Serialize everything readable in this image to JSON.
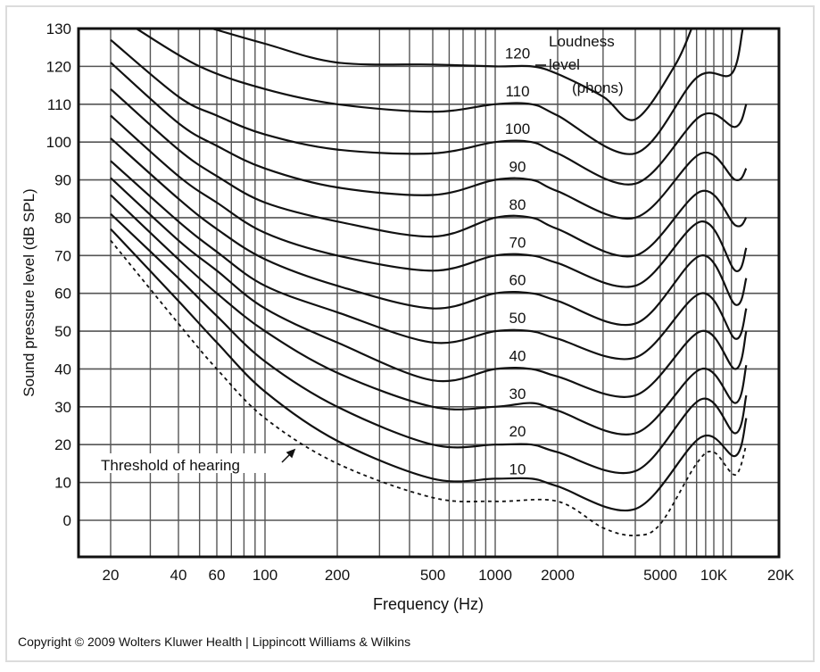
{
  "chart_data": {
    "type": "line",
    "title": "",
    "xlabel": "Frequency (Hz)",
    "ylabel": "Sound pressure level (dB SPL)",
    "x_scale": "log",
    "xlim": [
      20,
      20000
    ],
    "ylim": [
      -10,
      130
    ],
    "grid": true,
    "x_ticks": [
      {
        "value": 20,
        "label": "20"
      },
      {
        "value": 40,
        "label": "40"
      },
      {
        "value": 60,
        "label": "60"
      },
      {
        "value": 100,
        "label": "100"
      },
      {
        "value": 200,
        "label": "200"
      },
      {
        "value": 500,
        "label": "500"
      },
      {
        "value": 1000,
        "label": "1000"
      },
      {
        "value": 2000,
        "label": "2000"
      },
      {
        "value": 5000,
        "label": "5000"
      },
      {
        "value": 10000,
        "label": "10K"
      },
      {
        "value": 20000,
        "label": "20K"
      }
    ],
    "y_ticks": [
      130,
      120,
      110,
      100,
      90,
      80,
      70,
      60,
      50,
      40,
      30,
      20,
      10,
      0
    ],
    "legend_title": [
      "Loudness",
      "level",
      "(phons)"
    ],
    "series": [
      {
        "name": "120",
        "points": [
          [
            57,
            130
          ],
          [
            100,
            126
          ],
          [
            200,
            121
          ],
          [
            500,
            120.5
          ],
          [
            1000,
            120
          ],
          [
            1500,
            120
          ],
          [
            2000,
            118
          ],
          [
            3000,
            112
          ],
          [
            4000,
            106
          ],
          [
            6000,
            120
          ],
          [
            7500,
            130
          ]
        ]
      },
      {
        "name": "110",
        "points": [
          [
            26,
            130
          ],
          [
            50,
            120
          ],
          [
            100,
            114
          ],
          [
            200,
            110
          ],
          [
            500,
            108
          ],
          [
            1000,
            110
          ],
          [
            1500,
            110
          ],
          [
            2000,
            107
          ],
          [
            4000,
            97
          ],
          [
            8000,
            117
          ],
          [
            12000,
            118
          ],
          [
            13500,
            130
          ]
        ]
      },
      {
        "name": "100",
        "points": [
          [
            20,
            127
          ],
          [
            40,
            112
          ],
          [
            60,
            107
          ],
          [
            100,
            102
          ],
          [
            200,
            98
          ],
          [
            500,
            97
          ],
          [
            1000,
            100
          ],
          [
            1500,
            100
          ],
          [
            2000,
            97
          ],
          [
            4000,
            89
          ],
          [
            8500,
            107
          ],
          [
            12500,
            104
          ],
          [
            14000,
            110
          ]
        ]
      },
      {
        "name": "90",
        "points": [
          [
            20,
            121
          ],
          [
            40,
            105
          ],
          [
            60,
            99
          ],
          [
            100,
            93
          ],
          [
            200,
            88
          ],
          [
            500,
            86
          ],
          [
            1000,
            90
          ],
          [
            1500,
            90
          ],
          [
            2000,
            87
          ],
          [
            4000,
            80
          ],
          [
            8500,
            97
          ],
          [
            12500,
            90
          ],
          [
            14000,
            93
          ]
        ]
      },
      {
        "name": "80",
        "points": [
          [
            20,
            114
          ],
          [
            40,
            98
          ],
          [
            60,
            91
          ],
          [
            100,
            84
          ],
          [
            200,
            79
          ],
          [
            500,
            75
          ],
          [
            1000,
            80
          ],
          [
            1500,
            80
          ],
          [
            2000,
            77
          ],
          [
            4000,
            70
          ],
          [
            8500,
            87
          ],
          [
            12500,
            78
          ],
          [
            14000,
            80
          ]
        ]
      },
      {
        "name": "70",
        "points": [
          [
            20,
            107
          ],
          [
            40,
            91
          ],
          [
            60,
            84
          ],
          [
            100,
            76
          ],
          [
            200,
            70
          ],
          [
            500,
            66
          ],
          [
            1000,
            70
          ],
          [
            1500,
            70
          ],
          [
            2000,
            68
          ],
          [
            4000,
            62
          ],
          [
            8500,
            79
          ],
          [
            12500,
            66
          ],
          [
            14000,
            72
          ]
        ]
      },
      {
        "name": "60",
        "points": [
          [
            20,
            101
          ],
          [
            40,
            85
          ],
          [
            60,
            77
          ],
          [
            100,
            69
          ],
          [
            200,
            62
          ],
          [
            500,
            56
          ],
          [
            1000,
            60
          ],
          [
            1500,
            60
          ],
          [
            2000,
            58
          ],
          [
            4000,
            52
          ],
          [
            8500,
            70
          ],
          [
            12500,
            57
          ],
          [
            14000,
            64
          ]
        ]
      },
      {
        "name": "50",
        "points": [
          [
            20,
            95
          ],
          [
            40,
            79
          ],
          [
            60,
            71
          ],
          [
            100,
            62
          ],
          [
            200,
            55
          ],
          [
            500,
            47
          ],
          [
            1000,
            50
          ],
          [
            1500,
            50
          ],
          [
            2000,
            48
          ],
          [
            4000,
            43
          ],
          [
            8500,
            60
          ],
          [
            12500,
            48
          ],
          [
            14000,
            56
          ]
        ]
      },
      {
        "name": "40",
        "points": [
          [
            20,
            90.5
          ],
          [
            40,
            74
          ],
          [
            60,
            66
          ],
          [
            100,
            56
          ],
          [
            200,
            47
          ],
          [
            500,
            37
          ],
          [
            1000,
            40
          ],
          [
            1500,
            40
          ],
          [
            2000,
            38
          ],
          [
            4000,
            33
          ],
          [
            8500,
            50
          ],
          [
            12500,
            40
          ],
          [
            14000,
            50
          ]
        ]
      },
      {
        "name": "30",
        "points": [
          [
            20,
            86
          ],
          [
            40,
            69
          ],
          [
            60,
            60
          ],
          [
            100,
            50
          ],
          [
            200,
            39
          ],
          [
            500,
            30
          ],
          [
            1000,
            30
          ],
          [
            1500,
            31
          ],
          [
            2000,
            29
          ],
          [
            4000,
            23
          ],
          [
            8500,
            40
          ],
          [
            12500,
            31
          ],
          [
            14000,
            41
          ]
        ]
      },
      {
        "name": "20",
        "points": [
          [
            20,
            81
          ],
          [
            40,
            64
          ],
          [
            60,
            54
          ],
          [
            100,
            42
          ],
          [
            200,
            30
          ],
          [
            500,
            20
          ],
          [
            1000,
            20
          ],
          [
            1500,
            20
          ],
          [
            2000,
            18
          ],
          [
            4000,
            13
          ],
          [
            8500,
            32
          ],
          [
            12500,
            23
          ],
          [
            14000,
            33
          ]
        ]
      },
      {
        "name": "10",
        "points": [
          [
            20,
            77
          ],
          [
            40,
            58
          ],
          [
            60,
            47
          ],
          [
            100,
            34
          ],
          [
            200,
            21
          ],
          [
            500,
            11
          ],
          [
            1000,
            11
          ],
          [
            1500,
            11
          ],
          [
            2000,
            9
          ],
          [
            4000,
            3
          ],
          [
            8500,
            22
          ],
          [
            12500,
            17
          ],
          [
            14000,
            27
          ]
        ]
      }
    ],
    "threshold": {
      "name": "Threshold of hearing",
      "style": "dashed",
      "points": [
        [
          20,
          74
        ],
        [
          40,
          52
        ],
        [
          60,
          40
        ],
        [
          100,
          27
        ],
        [
          200,
          15
        ],
        [
          500,
          6
        ],
        [
          1000,
          5
        ],
        [
          2000,
          5
        ],
        [
          3000,
          -2
        ],
        [
          4000,
          -4
        ],
        [
          5000,
          -1
        ],
        [
          8000,
          15
        ],
        [
          10000,
          18
        ],
        [
          12500,
          12
        ],
        [
          14000,
          20
        ]
      ]
    },
    "colors": {
      "line": "#111111",
      "grid": "#555555",
      "background": "#ffffff"
    }
  },
  "footer": {
    "copyright": "Copyright © 2009 Wolters Kluwer Health | Lippincott Williams & Wilkins"
  }
}
